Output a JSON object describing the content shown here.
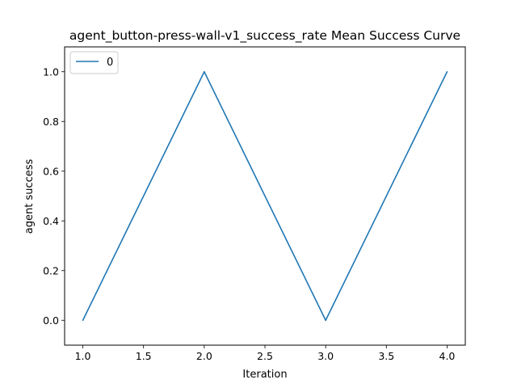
{
  "chart_data": {
    "type": "line",
    "title": "agent_button-press-wall-v1_success_rate Mean Success Curve",
    "xlabel": "Iteration",
    "ylabel": "agent success",
    "xlim": [
      0.85,
      4.15
    ],
    "ylim": [
      -0.1,
      1.1
    ],
    "xticks": [
      1.0,
      1.5,
      2.0,
      2.5,
      3.0,
      3.5,
      4.0
    ],
    "xtick_labels": [
      "1.0",
      "1.5",
      "2.0",
      "2.5",
      "3.0",
      "3.5",
      "4.0"
    ],
    "yticks": [
      0.0,
      0.2,
      0.4,
      0.6,
      0.8,
      1.0
    ],
    "ytick_labels": [
      "0.0",
      "0.2",
      "0.4",
      "0.6",
      "0.8",
      "1.0"
    ],
    "grid": false,
    "legend_position": "top-left",
    "series": [
      {
        "name": "0",
        "color": "#1f77b4",
        "x": [
          1,
          2,
          3,
          4
        ],
        "y": [
          0.0,
          1.0,
          0.0,
          1.0
        ]
      }
    ]
  }
}
